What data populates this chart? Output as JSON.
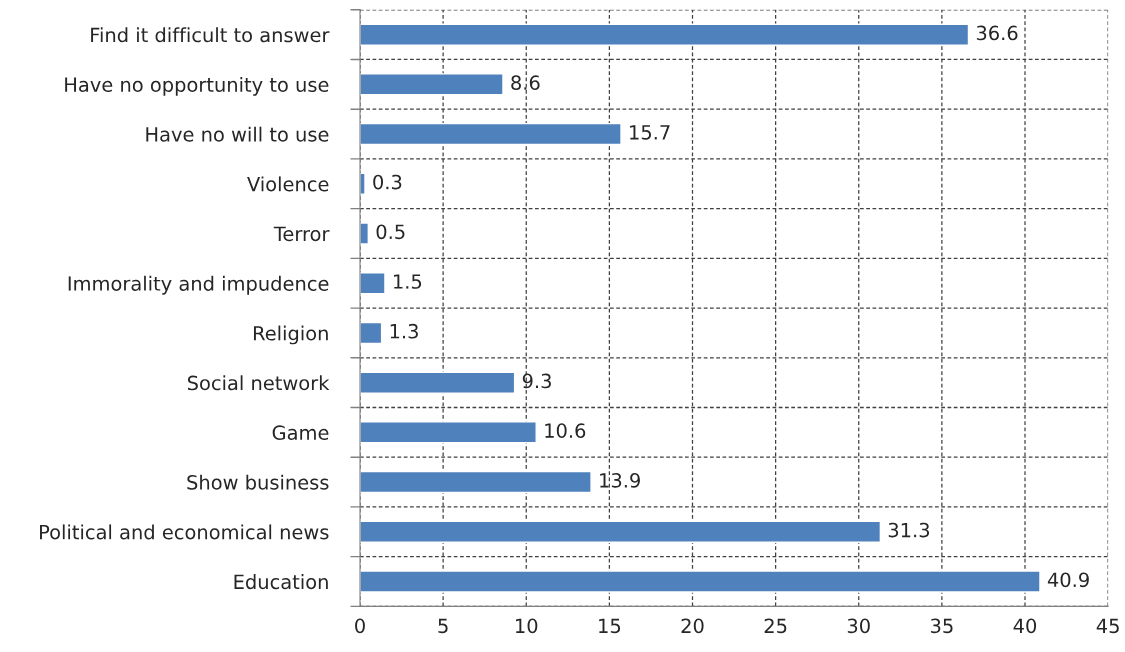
{
  "chart_data": {
    "type": "bar",
    "orientation": "horizontal",
    "categories": [
      "Find it difficult to answer",
      "Have no opportunity to use",
      "Have no will to use",
      "Violence",
      "Terror",
      "Immorality and impudence",
      "Religion",
      "Social network",
      "Game",
      "Show business",
      "Political and economical news",
      "Education"
    ],
    "values": [
      36.6,
      8.6,
      15.7,
      0.3,
      0.5,
      1.5,
      1.3,
      9.3,
      10.6,
      13.9,
      31.3,
      40.9
    ],
    "color": "#4f81bd",
    "xlim": [
      0,
      45
    ],
    "xticks": [
      0,
      5,
      10,
      15,
      20,
      25,
      30,
      35,
      40,
      45
    ],
    "grid": true,
    "data_labels": true
  }
}
